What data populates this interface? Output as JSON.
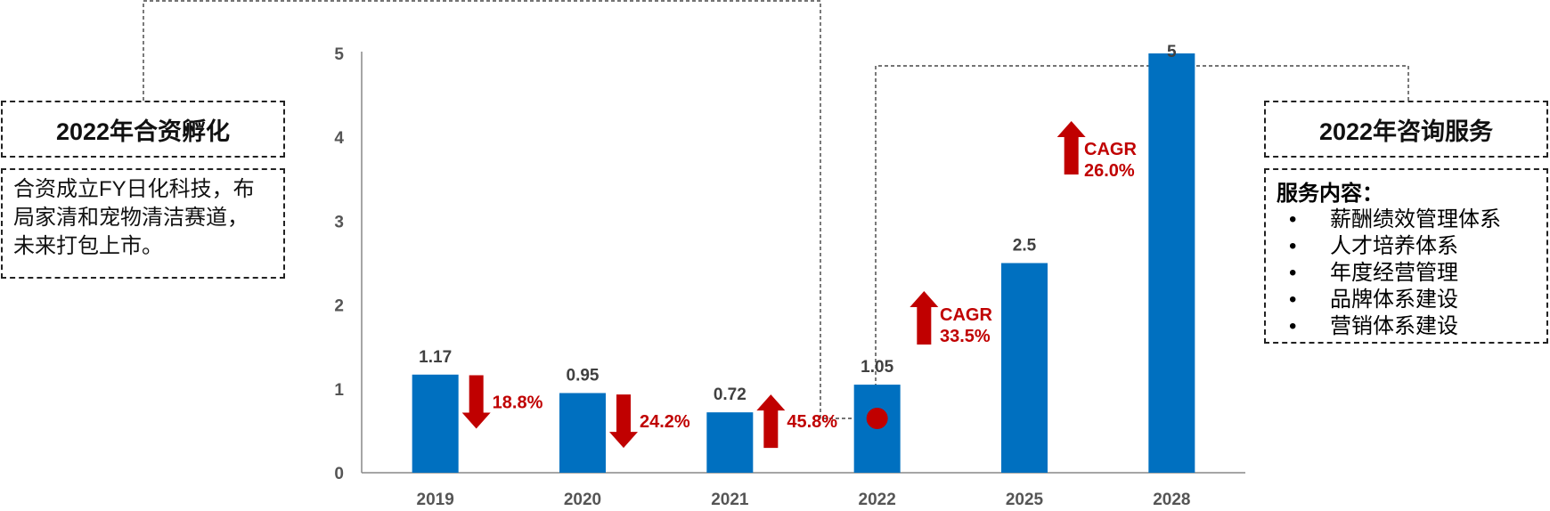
{
  "chart_data": {
    "type": "bar",
    "categories": [
      "2019",
      "2020",
      "2021",
      "2022",
      "2025",
      "2028"
    ],
    "values": [
      1.17,
      0.95,
      0.72,
      1.05,
      2.5,
      5
    ],
    "value_labels": [
      "1.17",
      "0.95",
      "0.72",
      "1.05",
      "2.5",
      "5"
    ],
    "yticks": [
      "0",
      "1",
      "2",
      "3",
      "4",
      "5"
    ],
    "ylim": [
      0,
      5
    ],
    "grid": false,
    "bar_color": "#0070c0",
    "changes": [
      {
        "between": [
          "2019",
          "2020"
        ],
        "direction": "down",
        "label": "18.8%"
      },
      {
        "between": [
          "2020",
          "2021"
        ],
        "direction": "down",
        "label": "24.2%"
      },
      {
        "between": [
          "2021",
          "2022"
        ],
        "direction": "up",
        "label": "45.8%"
      }
    ],
    "cagr_annotations": [
      {
        "between": [
          "2022",
          "2025"
        ],
        "title": "CAGR",
        "label": "33.5%"
      },
      {
        "between": [
          "2025",
          "2028"
        ],
        "title": "CAGR",
        "label": "26.0%"
      }
    ],
    "marker_year": "2022"
  },
  "colors": {
    "accent_red": "#c00000",
    "bar_blue": "#0070c0"
  },
  "left_panel": {
    "title": "2022年合资孵化",
    "body_lines": [
      "合资成立FY日化科技，布",
      "局家清和宠物清洁赛道，",
      "未来打包上市。"
    ]
  },
  "right_panel": {
    "title": "2022年咨询服务",
    "heading": "服务内容：",
    "items": [
      "薪酬绩效管理体系",
      "人才培养体系",
      "年度经营管理",
      "品牌体系建设",
      "营销体系建设"
    ]
  }
}
